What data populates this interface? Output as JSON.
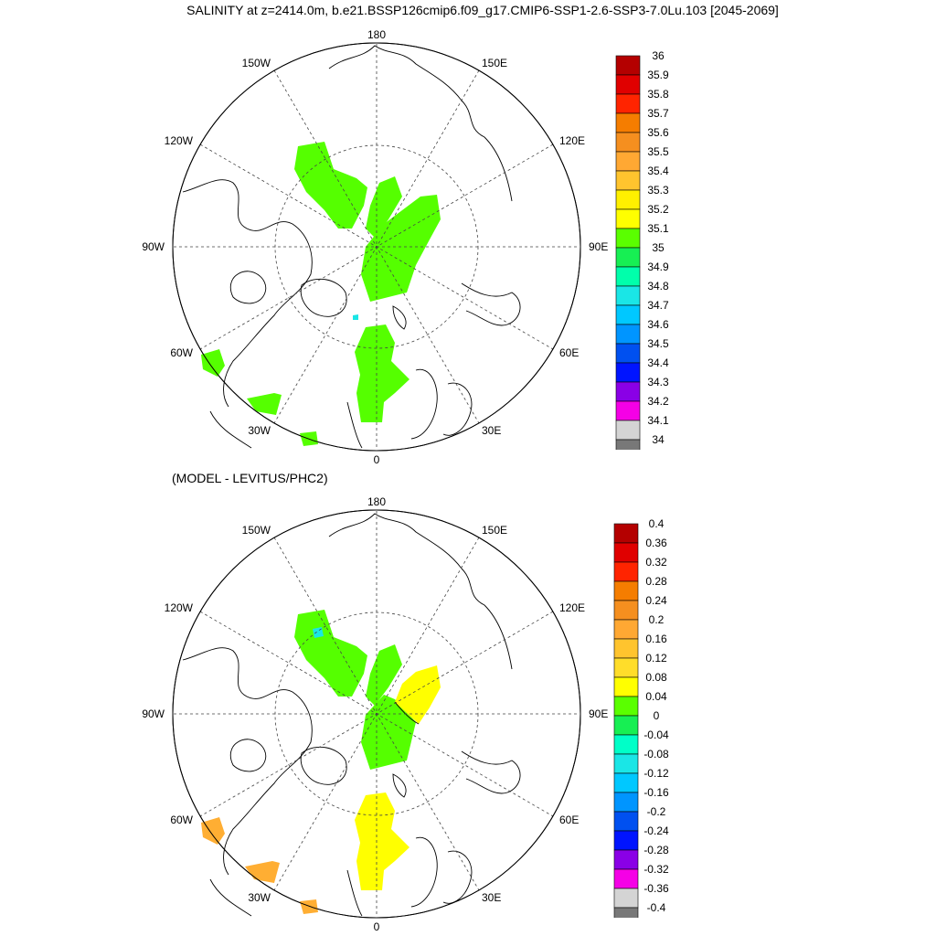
{
  "title": "SALINITY at z=2414.0m, b.e21.BSSP126cmip6.f09_g17.CMIP6-SSP1-2.6-SSP3-7.0Lu.103 [2045-2069]",
  "subtitle": "(MODEL - LEVITUS/PHC2)",
  "map_labels": {
    "top": "180",
    "bottom": "0",
    "left": "90W",
    "right": "90E",
    "ul1": "150W",
    "ul2": "120W",
    "ur1": "150E",
    "ur2": "120E",
    "ll1": "60W",
    "ll2": "30W",
    "lr1": "60E",
    "lr2": "30E"
  },
  "colorbar_top": {
    "labels": [
      "36",
      "35.9",
      "35.8",
      "35.7",
      "35.6",
      "35.5",
      "35.4",
      "35.3",
      "35.2",
      "35.1",
      "35",
      "34.9",
      "34.8",
      "34.7",
      "34.6",
      "34.5",
      "34.4",
      "34.3",
      "34.2",
      "34.1",
      "34"
    ],
    "colors": [
      "#b40000",
      "#e00000",
      "#ff2400",
      "#f57d00",
      "#f58f1f",
      "#ffa833",
      "#ffc42e",
      "#fff000",
      "#ffff00",
      "#5aff00",
      "#17ef53",
      "#00ffab",
      "#1ae6e6",
      "#00c8ff",
      "#0095ff",
      "#0050f0",
      "#0014ff",
      "#8a00e6",
      "#f500e6",
      "#d4d4d4",
      "#787878"
    ]
  },
  "colorbar_bottom": {
    "labels": [
      "0.4",
      "0.36",
      "0.32",
      "0.28",
      "0.24",
      "0.2",
      "0.16",
      "0.12",
      "0.08",
      "0.04",
      "0",
      "-0.04",
      "-0.08",
      "-0.12",
      "-0.16",
      "-0.2",
      "-0.24",
      "-0.28",
      "-0.32",
      "-0.36",
      "-0.4"
    ],
    "colors": [
      "#b40000",
      "#e00000",
      "#ff2400",
      "#f57d00",
      "#f58f1f",
      "#ffa833",
      "#ffc42e",
      "#ffdd2a",
      "#ffff00",
      "#5aff00",
      "#17ef53",
      "#00ffc8",
      "#1ae6e6",
      "#00c8ff",
      "#0095ff",
      "#0050f0",
      "#0014ff",
      "#8a00e6",
      "#f500e6",
      "#d4d4d4",
      "#787878"
    ]
  },
  "field_colors": {
    "green": "#55ff00",
    "yellow": "#ffff00",
    "orange": "#ffae33",
    "cyan": "#1ae6e6"
  }
}
